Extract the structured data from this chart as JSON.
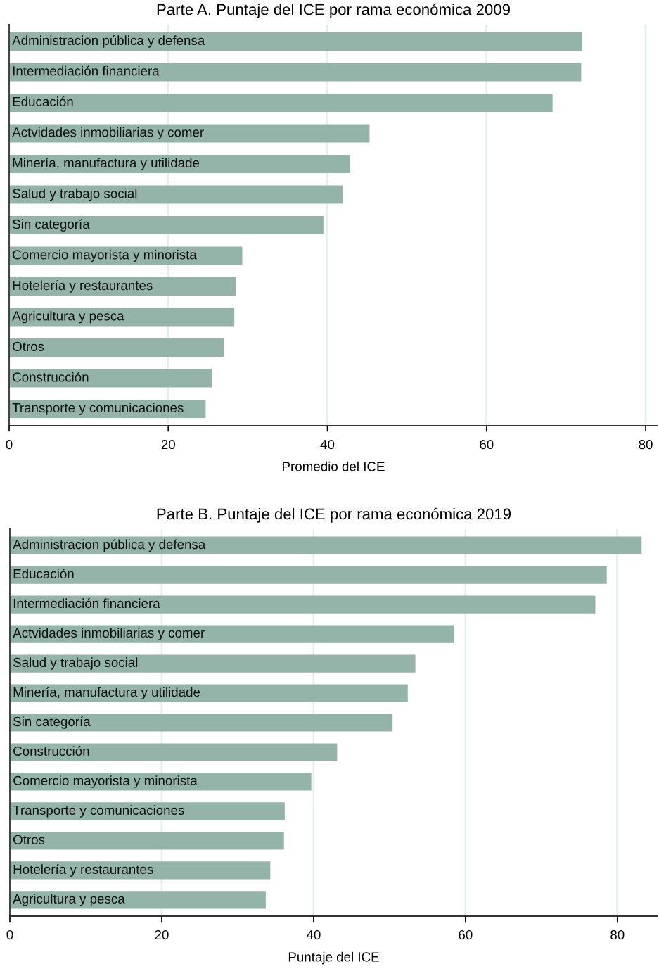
{
  "chart_data": [
    {
      "type": "bar",
      "orientation": "horizontal",
      "title": "Parte A. Puntaje del ICE por rama económica 2009",
      "xlabel": "Promedio del ICE",
      "categories": [
        "Administracion pública y defensa",
        "Intermediación financiera",
        "Educación",
        "Actvidades inmobiliarias y comer",
        "Minería, manufactura y utilidade",
        "Salud y trabajo social",
        "Sin categoría",
        "Comercio mayorista y minorista",
        "Hotelería y restaurantes",
        "Agricultura y pesca",
        "Otros",
        "Construcción",
        "Transporte y comunicaciones"
      ],
      "values": [
        72.0,
        71.9,
        68.3,
        45.3,
        42.8,
        41.9,
        39.5,
        29.3,
        28.5,
        28.3,
        27.0,
        25.5,
        24.7
      ],
      "color": "#94b4aa",
      "xlim": [
        0,
        81.5
      ],
      "xticks": [
        0,
        20,
        40,
        60,
        80
      ],
      "grid": "x"
    },
    {
      "type": "bar",
      "orientation": "horizontal",
      "title": "Parte B. Puntaje del ICE por rama económica 2019",
      "xlabel": "Puntaje del ICE",
      "categories": [
        "Administracion pública y defensa",
        "Educación",
        "Intermediación financiera",
        "Actvidades inmobiliarias y comer",
        "Salud y trabajo social",
        "Minería, manufactura y utilidade",
        "Sin categoría",
        "Construcción",
        "Comercio mayorista y minorista",
        "Transporte y comunicaciones",
        "Otros",
        "Hotelería y restaurantes",
        "Agricultura y pesca"
      ],
      "values": [
        83.2,
        78.6,
        77.1,
        58.5,
        53.4,
        52.4,
        50.4,
        43.1,
        39.7,
        36.2,
        36.1,
        34.3,
        33.7
      ],
      "color": "#94b4aa",
      "xlim": [
        0,
        85.3
      ],
      "xticks": [
        0,
        20,
        40,
        60,
        80
      ],
      "grid": "x"
    }
  ]
}
